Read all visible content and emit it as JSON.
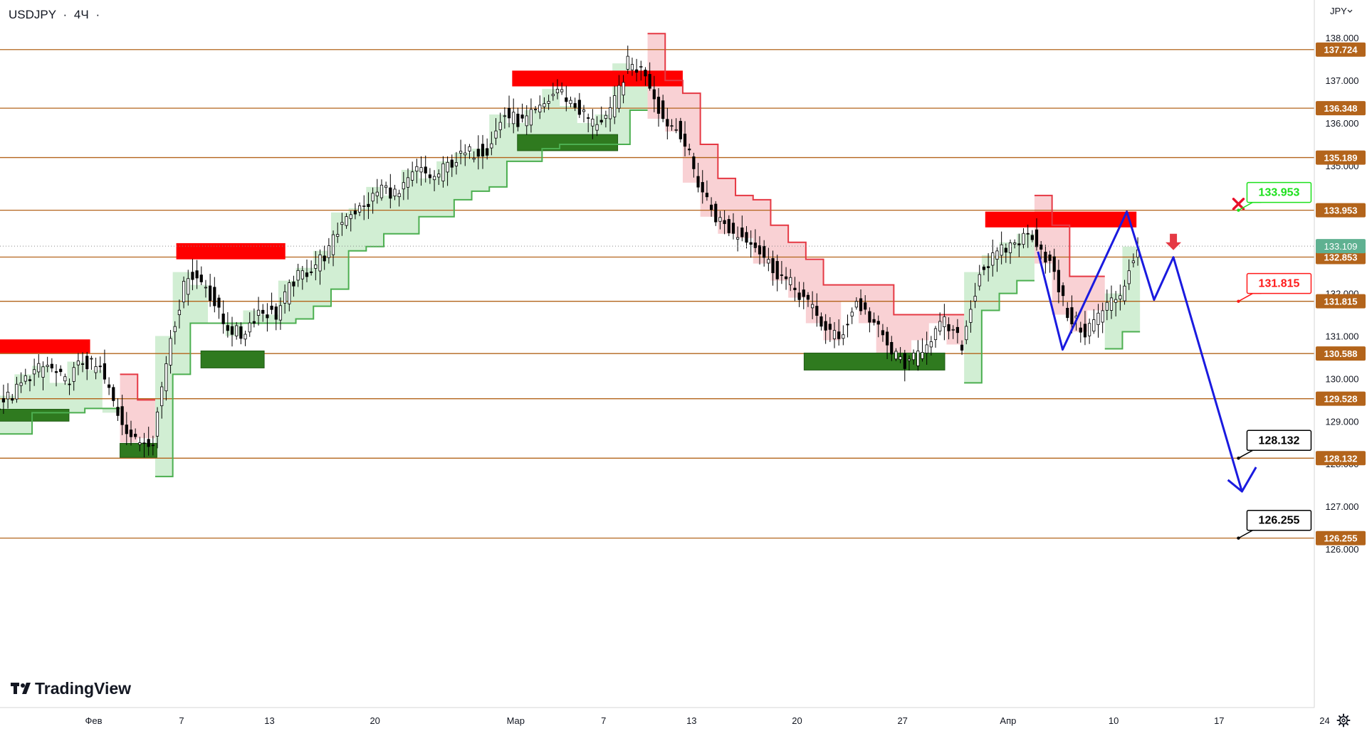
{
  "header": {
    "symbol": "USDJPY",
    "sep1": "·",
    "interval": "4Ч",
    "sep2": "·"
  },
  "currency": "JPY",
  "logo_text": "TradingView",
  "colors": {
    "level": "#b3641b",
    "up_candle": "#26a69a",
    "down_candle": "#000000",
    "supply": "#ff0000",
    "demand": "#2f7a1f",
    "red_line": "#e53944",
    "green_line": "#4caf50",
    "red_fill": "#f8c9cc",
    "green_fill": "#c9ebcb",
    "projection": "#1a1adf",
    "price_tag_current": "#5fb191"
  },
  "chart_data": {
    "type": "candlestick",
    "symbol": "USDJPY",
    "timeframe": "4Ч",
    "y_range": [
      125.85,
      138.5
    ],
    "x_range": [
      0,
      75
    ],
    "y_ticks": [
      {
        "value": 138,
        "label": "138.000"
      },
      {
        "value": 137,
        "label": "137.000"
      },
      {
        "value": 136,
        "label": "136.000"
      },
      {
        "value": 135,
        "label": "135.000"
      },
      {
        "value": 132,
        "label": "132.000"
      },
      {
        "value": 131,
        "label": "131.000"
      },
      {
        "value": 130,
        "label": "130.000"
      },
      {
        "value": 129,
        "label": "129.000"
      },
      {
        "value": 128,
        "label": "128.000"
      },
      {
        "value": 127,
        "label": "127.000"
      },
      {
        "value": 126,
        "label": "126.000"
      }
    ],
    "x_ticks": [
      {
        "x": 5,
        "label": "Фев"
      },
      {
        "x": 10,
        "label": "7"
      },
      {
        "x": 15,
        "label": "13"
      },
      {
        "x": 21,
        "label": "20"
      },
      {
        "x": 29,
        "label": "Мар"
      },
      {
        "x": 34,
        "label": "7"
      },
      {
        "x": 39,
        "label": "13"
      },
      {
        "x": 45,
        "label": "20"
      },
      {
        "x": 51,
        "label": "27"
      },
      {
        "x": 57,
        "label": "Апр"
      },
      {
        "x": 63,
        "label": "10"
      },
      {
        "x": 69,
        "label": "17"
      },
      {
        "x": 75,
        "label": "24"
      }
    ],
    "levels": [
      137.724,
      136.348,
      135.189,
      133.953,
      132.853,
      131.815,
      130.588,
      129.528,
      128.132,
      126.255
    ],
    "current_price": 133.109,
    "price_labels": [
      {
        "value": 133.953,
        "label": "133.953",
        "color": "#1ce01c"
      },
      {
        "value": 131.815,
        "label": "131.815",
        "color": "#ff1a1a"
      },
      {
        "value": 128.132,
        "label": "128.132",
        "color": "#000000"
      },
      {
        "value": 126.255,
        "label": "126.255",
        "color": "#000000"
      }
    ],
    "closes": [
      129.6,
      130.1,
      130.3,
      129.9,
      130.4,
      130.2,
      129.2,
      128.5,
      128.6,
      131.0,
      132.5,
      132.2,
      131.3,
      131.0,
      131.6,
      131.5,
      132.3,
      132.6,
      133.0,
      133.9,
      134.0,
      134.5,
      134.3,
      134.9,
      134.7,
      135.1,
      135.3,
      135.4,
      136.2,
      136.0,
      136.3,
      136.8,
      136.4,
      136.0,
      136.2,
      137.4,
      137.2,
      136.1,
      135.8,
      134.6,
      133.8,
      133.4,
      133.3,
      132.7,
      132.3,
      131.9,
      131.3,
      130.9,
      131.8,
      131.3,
      130.6,
      130.3,
      130.9,
      131.3,
      130.8,
      132.5,
      132.9,
      133.2,
      133.4,
      132.7,
      131.5,
      131.1,
      131.6,
      132.0,
      133.1
    ],
    "supply_zones": [
      {
        "x0": -0.5,
        "x1": 4.8,
        "y0": 130.6,
        "y1": 130.92
      },
      {
        "x0": 9.7,
        "x1": 15.9,
        "y0": 132.8,
        "y1": 133.18
      },
      {
        "x0": 28.8,
        "x1": 38.5,
        "y0": 136.86,
        "y1": 137.23
      },
      {
        "x0": 55.7,
        "x1": 64.3,
        "y0": 133.55,
        "y1": 133.92
      }
    ],
    "demand_zones": [
      {
        "x0": -0.5,
        "x1": 3.6,
        "y0": 129.0,
        "y1": 129.28
      },
      {
        "x0": 6.5,
        "x1": 8.6,
        "y0": 128.15,
        "y1": 128.48
      },
      {
        "x0": 11.1,
        "x1": 14.7,
        "y0": 130.25,
        "y1": 130.65
      },
      {
        "x0": 29.1,
        "x1": 34.8,
        "y0": 135.35,
        "y1": 135.73
      },
      {
        "x0": 45.4,
        "x1": 53.4,
        "y0": 130.2,
        "y1": 130.6
      }
    ],
    "projection": [
      {
        "x": 58.7,
        "y": 132.98
      },
      {
        "x": 60.1,
        "y": 130.68
      },
      {
        "x": 63.75,
        "y": 133.92
      },
      {
        "x": 65.3,
        "y": 131.85
      },
      {
        "x": 66.4,
        "y": 132.85
      },
      {
        "x": 70.3,
        "y": 127.35
      }
    ],
    "projection_arrowhead": [
      {
        "x": 69.5,
        "y": 127.62
      },
      {
        "x": 70.3,
        "y": 127.35
      },
      {
        "x": 71.1,
        "y": 127.92
      }
    ],
    "markers": [
      {
        "type": "cross",
        "x": 70.1,
        "y": 134.1
      },
      {
        "type": "down-arrow",
        "x": 66.4,
        "y": 133.2
      }
    ]
  }
}
